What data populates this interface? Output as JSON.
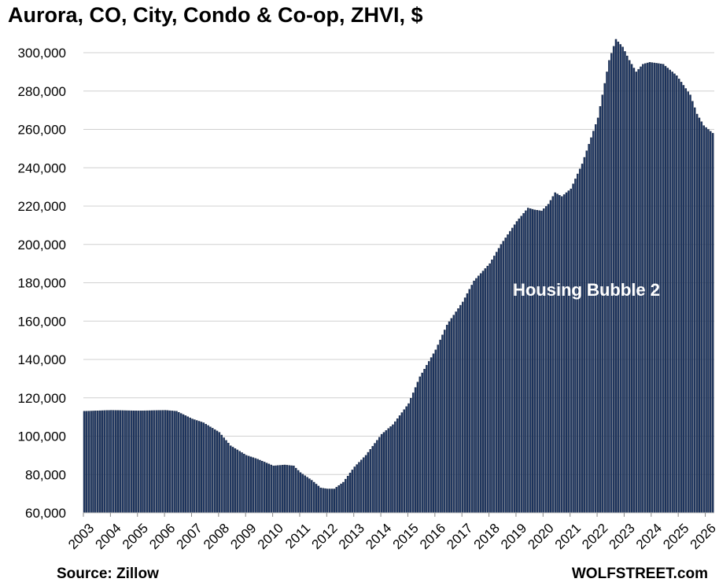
{
  "chart_data": {
    "type": "bar",
    "title": "Aurora, CO, City, Condo & Co-op, ZHVI, $",
    "xlabel": "",
    "ylabel": "",
    "ylim": [
      60000,
      310000
    ],
    "y_ticks": [
      "60,000",
      "80,000",
      "100,000",
      "120,000",
      "140,000",
      "160,000",
      "180,000",
      "200,000",
      "220,000",
      "240,000",
      "260,000",
      "280,000",
      "300,000"
    ],
    "x_ticks": [
      "2003",
      "2004",
      "2005",
      "2006",
      "2007",
      "2008",
      "2009",
      "2010",
      "2011",
      "2012",
      "2013",
      "2014",
      "2015",
      "2016",
      "2017",
      "2018",
      "2019",
      "2020",
      "2021",
      "2022",
      "2023",
      "2024",
      "2025",
      "2026"
    ],
    "frequency": "monthly",
    "start": "2003-01",
    "end": "2026-04",
    "grid": true,
    "bar_color": "#1f3864",
    "annotation": "Housing Bubble 2",
    "source": "Source: Zillow",
    "brand": "WOLFSTREET.com",
    "anchors": [
      [
        "2003-01",
        113000
      ],
      [
        "2004-01",
        113500
      ],
      [
        "2005-01",
        113200
      ],
      [
        "2006-01",
        113500
      ],
      [
        "2006-06",
        113000
      ],
      [
        "2007-01",
        109000
      ],
      [
        "2007-06",
        107000
      ],
      [
        "2008-01",
        102000
      ],
      [
        "2008-06",
        95000
      ],
      [
        "2009-01",
        90000
      ],
      [
        "2009-06",
        88000
      ],
      [
        "2010-01",
        84500
      ],
      [
        "2010-06",
        85000
      ],
      [
        "2010-10",
        84500
      ],
      [
        "2011-01",
        81000
      ],
      [
        "2011-06",
        77000
      ],
      [
        "2011-10",
        73000
      ],
      [
        "2012-01",
        72500
      ],
      [
        "2012-04",
        72500
      ],
      [
        "2012-08",
        76000
      ],
      [
        "2013-01",
        84000
      ],
      [
        "2013-06",
        90000
      ],
      [
        "2014-01",
        101000
      ],
      [
        "2014-06",
        106000
      ],
      [
        "2015-01",
        117000
      ],
      [
        "2015-06",
        131000
      ],
      [
        "2016-01",
        145000
      ],
      [
        "2016-06",
        158000
      ],
      [
        "2017-01",
        170000
      ],
      [
        "2017-06",
        181000
      ],
      [
        "2018-01",
        190000
      ],
      [
        "2018-06",
        200000
      ],
      [
        "2019-01",
        212000
      ],
      [
        "2019-06",
        219000
      ],
      [
        "2019-09",
        218000
      ],
      [
        "2019-12",
        217500
      ],
      [
        "2020-03",
        221000
      ],
      [
        "2020-06",
        227000
      ],
      [
        "2020-09",
        225000
      ],
      [
        "2021-01",
        229000
      ],
      [
        "2021-06",
        242000
      ],
      [
        "2022-01",
        266000
      ],
      [
        "2022-06",
        296000
      ],
      [
        "2022-09",
        307000
      ],
      [
        "2022-12",
        303000
      ],
      [
        "2023-03",
        296000
      ],
      [
        "2023-06",
        290000
      ],
      [
        "2023-09",
        294000
      ],
      [
        "2023-12",
        295000
      ],
      [
        "2024-06",
        294000
      ],
      [
        "2024-12",
        288000
      ],
      [
        "2025-06",
        278000
      ],
      [
        "2025-09",
        268000
      ],
      [
        "2025-12",
        262000
      ],
      [
        "2026-04",
        258000
      ]
    ]
  }
}
